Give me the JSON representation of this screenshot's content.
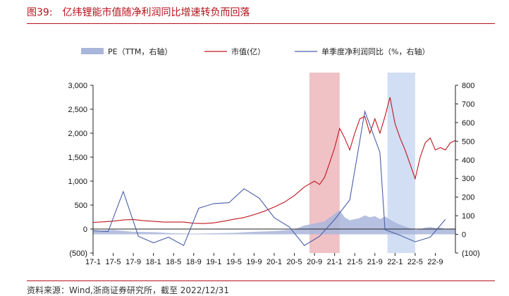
{
  "figure": {
    "number": "图39:",
    "title": "亿纬锂能市值随净利润同比增速转负而回落",
    "source": "资料来源：Wind,浙商证券研究所，截至 2022/12/31"
  },
  "chart_data": {
    "type": "line",
    "title": "亿纬锂能市值随净利润同比增速转负而回落",
    "legend": [
      "PE（TTM，右轴）",
      "市值(亿）",
      "单季度净利润同比（%，右轴）"
    ],
    "x_tick_labels": [
      "17-1",
      "17-5",
      "17-9",
      "18-1",
      "18-5",
      "18-9",
      "19-1",
      "19-5",
      "19-9",
      "20-1",
      "20-5",
      "20-9",
      "21-1",
      "21-5",
      "21-9",
      "22-1",
      "22-5",
      "22-9"
    ],
    "x_tick_month_index": [
      0,
      4,
      8,
      12,
      16,
      20,
      24,
      28,
      32,
      36,
      40,
      44,
      48,
      52,
      56,
      60,
      64,
      68
    ],
    "x_range_months": [
      0,
      72
    ],
    "y_left": {
      "min": -500,
      "max": 3000,
      "ticks": [
        "(500)",
        "0",
        "500",
        "1,000",
        "1,500",
        "2,000",
        "2,500",
        "3,000"
      ],
      "tick_values": [
        -500,
        0,
        500,
        1000,
        1500,
        2000,
        2500,
        3000
      ]
    },
    "y_right": {
      "min": -100,
      "max": 800,
      "ticks": [
        "(100)",
        "0",
        "100",
        "200",
        "300",
        "400",
        "500",
        "600",
        "700",
        "800"
      ],
      "tick_values": [
        -100,
        0,
        100,
        200,
        300,
        400,
        500,
        600,
        700,
        800
      ]
    },
    "highlight_bands": [
      {
        "from_month": 43,
        "to_month": 49,
        "color": "#e8a0a6"
      },
      {
        "from_month": 58.5,
        "to_month": 64,
        "color": "#b8cdec"
      }
    ],
    "series": [
      {
        "name": "市值(亿）",
        "axis": "left",
        "color": "#c0161d",
        "points": [
          [
            0,
            140
          ],
          [
            2,
            150
          ],
          [
            4,
            165
          ],
          [
            6,
            190
          ],
          [
            8,
            200
          ],
          [
            10,
            175
          ],
          [
            12,
            160
          ],
          [
            14,
            145
          ],
          [
            16,
            145
          ],
          [
            18,
            145
          ],
          [
            20,
            120
          ],
          [
            22,
            115
          ],
          [
            24,
            130
          ],
          [
            26,
            165
          ],
          [
            28,
            205
          ],
          [
            30,
            240
          ],
          [
            32,
            300
          ],
          [
            34,
            370
          ],
          [
            36,
            460
          ],
          [
            38,
            560
          ],
          [
            40,
            700
          ],
          [
            42,
            880
          ],
          [
            44,
            1000
          ],
          [
            45,
            930
          ],
          [
            46,
            1080
          ],
          [
            47,
            1380
          ],
          [
            48,
            1700
          ],
          [
            49,
            2100
          ],
          [
            50,
            1900
          ],
          [
            51,
            1650
          ],
          [
            52,
            2000
          ],
          [
            53,
            2300
          ],
          [
            54,
            2350
          ],
          [
            55,
            2000
          ],
          [
            56,
            2300
          ],
          [
            57,
            2000
          ],
          [
            58,
            2350
          ],
          [
            59,
            2750
          ],
          [
            60,
            2200
          ],
          [
            61,
            1900
          ],
          [
            62,
            1650
          ],
          [
            63,
            1350
          ],
          [
            64,
            1050
          ],
          [
            65,
            1500
          ],
          [
            66,
            1800
          ],
          [
            67,
            1900
          ],
          [
            68,
            1650
          ],
          [
            69,
            1700
          ],
          [
            70,
            1650
          ],
          [
            71,
            1800
          ],
          [
            72,
            1850
          ]
        ]
      },
      {
        "name": "单季度净利润同比（%，右轴）",
        "axis": "right",
        "color": "#4a5fa8",
        "points": [
          [
            0,
            20
          ],
          [
            3,
            15
          ],
          [
            6,
            230
          ],
          [
            9,
            -10
          ],
          [
            12,
            -45
          ],
          [
            15,
            -15
          ],
          [
            18,
            -60
          ],
          [
            21,
            140
          ],
          [
            24,
            165
          ],
          [
            27,
            170
          ],
          [
            30,
            245
          ],
          [
            33,
            195
          ],
          [
            36,
            90
          ],
          [
            39,
            40
          ],
          [
            42,
            -60
          ],
          [
            45,
            -10
          ],
          [
            48,
            80
          ],
          [
            51,
            185
          ],
          [
            54,
            660
          ],
          [
            57,
            440
          ],
          [
            58,
            25
          ],
          [
            61,
            -5
          ],
          [
            64,
            -40
          ],
          [
            67,
            -15
          ],
          [
            70,
            80
          ]
        ]
      },
      {
        "name": "PE（TTM，右轴）",
        "axis": "right",
        "type": "area",
        "color": "#a9b6dc",
        "points": [
          [
            0,
            18
          ],
          [
            4,
            24
          ],
          [
            8,
            14
          ],
          [
            12,
            12
          ],
          [
            16,
            6
          ],
          [
            20,
            4
          ],
          [
            24,
            6
          ],
          [
            28,
            8
          ],
          [
            32,
            14
          ],
          [
            36,
            18
          ],
          [
            40,
            26
          ],
          [
            42,
            48
          ],
          [
            44,
            58
          ],
          [
            46,
            70
          ],
          [
            48,
            110
          ],
          [
            49,
            130
          ],
          [
            50,
            92
          ],
          [
            51,
            76
          ],
          [
            52,
            82
          ],
          [
            53,
            88
          ],
          [
            54,
            102
          ],
          [
            55,
            92
          ],
          [
            56,
            98
          ],
          [
            57,
            82
          ],
          [
            58,
            96
          ],
          [
            59,
            80
          ],
          [
            60,
            64
          ],
          [
            61,
            52
          ],
          [
            62,
            42
          ],
          [
            63,
            32
          ],
          [
            64,
            24
          ],
          [
            65,
            28
          ],
          [
            66,
            36
          ],
          [
            67,
            40
          ],
          [
            68,
            34
          ],
          [
            69,
            36
          ],
          [
            70,
            30
          ],
          [
            72,
            32
          ]
        ]
      }
    ]
  }
}
